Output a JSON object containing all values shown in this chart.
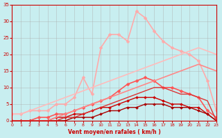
{
  "background_color": "#c8eef0",
  "grid_color": "#aaaaaa",
  "xlabel": "Vent moyen/en rafales ( km/h )",
  "ylabel": "",
  "xlim": [
    0,
    23
  ],
  "ylim": [
    0,
    35
  ],
  "xticks": [
    0,
    1,
    2,
    3,
    4,
    5,
    6,
    7,
    8,
    9,
    10,
    11,
    12,
    13,
    14,
    15,
    16,
    17,
    18,
    19,
    20,
    21,
    22,
    23
  ],
  "yticks": [
    0,
    5,
    10,
    15,
    20,
    25,
    30,
    35
  ],
  "series": [
    {
      "x": [
        0,
        1,
        2,
        3,
        4,
        5,
        6,
        7,
        8,
        9,
        10,
        11,
        12,
        13,
        14,
        15,
        16,
        17,
        18,
        19,
        20,
        21,
        22,
        23
      ],
      "y": [
        2,
        2,
        3,
        3,
        3,
        5,
        5,
        7,
        13,
        8,
        22,
        26,
        26,
        24,
        33,
        31,
        27,
        24,
        22,
        21,
        20,
        18,
        12,
        3
      ],
      "color": "#ffaaaa",
      "lw": 1.2,
      "marker": "D",
      "ms": 2.5
    },
    {
      "x": [
        0,
        1,
        2,
        3,
        4,
        5,
        6,
        7,
        8,
        9,
        10,
        11,
        12,
        13,
        14,
        15,
        16,
        17,
        18,
        19,
        20,
        21,
        22,
        23
      ],
      "y": [
        0,
        0,
        0,
        1,
        1,
        2,
        2,
        3,
        4,
        5,
        6,
        7,
        9,
        11,
        12,
        13,
        12,
        10,
        10,
        9,
        8,
        7,
        3,
        1
      ],
      "color": "#ff5555",
      "lw": 1.2,
      "marker": "D",
      "ms": 2.5
    },
    {
      "x": [
        0,
        1,
        2,
        3,
        4,
        5,
        6,
        7,
        8,
        9,
        10,
        11,
        12,
        13,
        14,
        15,
        16,
        17,
        18,
        19,
        20,
        21,
        22,
        23
      ],
      "y": [
        0,
        0,
        0,
        0,
        0,
        1,
        1,
        2,
        2,
        3,
        4,
        4,
        5,
        6,
        7,
        7,
        7,
        6,
        5,
        5,
        4,
        4,
        2,
        0
      ],
      "color": "#cc0000",
      "lw": 1.0,
      "marker": "D",
      "ms": 2.0
    },
    {
      "x": [
        0,
        1,
        2,
        3,
        4,
        5,
        6,
        7,
        8,
        9,
        10,
        11,
        12,
        13,
        14,
        15,
        16,
        17,
        18,
        19,
        20,
        21,
        22,
        23
      ],
      "y": [
        0,
        0,
        0,
        0,
        0,
        0,
        0,
        1,
        1,
        1,
        2,
        3,
        3,
        4,
        4,
        5,
        5,
        5,
        4,
        4,
        4,
        3,
        2,
        0
      ],
      "color": "#aa0000",
      "lw": 1.0,
      "marker": "D",
      "ms": 2.0
    },
    {
      "x": [
        0,
        1,
        2,
        3,
        4,
        5,
        6,
        7,
        8,
        9,
        10,
        11,
        12,
        13,
        14,
        15,
        16,
        17,
        18,
        19,
        20,
        21,
        22,
        23
      ],
      "y": [
        2,
        2,
        3,
        4,
        5,
        6,
        7,
        8,
        9,
        10,
        11,
        12,
        13,
        14,
        15,
        16,
        17,
        18,
        19,
        20,
        21,
        22,
        21,
        20
      ],
      "color": "#ffbbbb",
      "lw": 1.2,
      "marker": null,
      "ms": 0
    },
    {
      "x": [
        0,
        1,
        2,
        3,
        4,
        5,
        6,
        7,
        8,
        9,
        10,
        11,
        12,
        13,
        14,
        15,
        16,
        17,
        18,
        19,
        20,
        21,
        22,
        23
      ],
      "y": [
        0,
        0,
        0,
        0,
        0,
        1,
        2,
        3,
        4,
        5,
        6,
        7,
        8,
        9,
        10,
        11,
        12,
        13,
        14,
        15,
        16,
        17,
        16,
        15
      ],
      "color": "#ff8888",
      "lw": 1.2,
      "marker": null,
      "ms": 0
    },
    {
      "x": [
        0,
        1,
        2,
        3,
        4,
        5,
        6,
        7,
        8,
        9,
        10,
        11,
        12,
        13,
        14,
        15,
        16,
        17,
        18,
        19,
        20,
        21,
        22,
        23
      ],
      "y": [
        0,
        0,
        0,
        0,
        0,
        0,
        1,
        1,
        2,
        3,
        4,
        5,
        6,
        7,
        8,
        9,
        10,
        10,
        9,
        8,
        8,
        7,
        6,
        0
      ],
      "color": "#dd3333",
      "lw": 1.0,
      "marker": null,
      "ms": 0
    }
  ]
}
